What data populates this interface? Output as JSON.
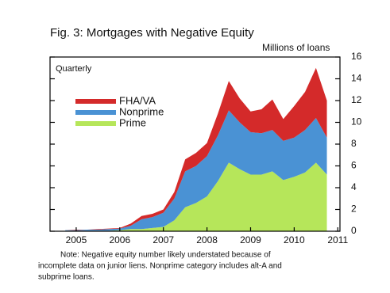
{
  "chart_data": {
    "type": "stacked_area",
    "title": "Fig. 3: Mortgages with Negative Equity",
    "y_label": "Millions of loans",
    "annotation": "Quarterly",
    "note": [
      "Note:  Negative equity number likely understated because of",
      "incomplete data on junior liens.  Nonprime category includes alt-A and",
      "subprime loans."
    ],
    "x": [
      2004.75,
      2005.0,
      2005.25,
      2005.5,
      2005.75,
      2006.0,
      2006.25,
      2006.5,
      2006.75,
      2007.0,
      2007.25,
      2007.5,
      2007.75,
      2008.0,
      2008.25,
      2008.5,
      2008.75,
      2009.0,
      2009.25,
      2009.5,
      2009.75,
      2010.0,
      2010.25,
      2010.5,
      2010.75
    ],
    "series": [
      {
        "name": "FHA/VA",
        "color": "#d42a2a",
        "values": [
          0.0,
          0.05,
          0.0,
          0.05,
          0.05,
          0.05,
          0.2,
          0.3,
          0.3,
          0.3,
          0.6,
          1.1,
          1.2,
          1.2,
          2.0,
          2.7,
          2.2,
          1.9,
          2.2,
          2.8,
          2.0,
          2.9,
          3.5,
          4.6,
          3.4
        ]
      },
      {
        "name": "Nonprime",
        "color": "#4a92d4",
        "values": [
          0.05,
          0.05,
          0.1,
          0.1,
          0.15,
          0.15,
          0.3,
          0.9,
          1.0,
          1.3,
          2.0,
          3.3,
          3.4,
          3.7,
          4.2,
          4.8,
          4.3,
          3.9,
          3.8,
          3.8,
          3.6,
          3.6,
          3.9,
          4.1,
          3.4
        ]
      },
      {
        "name": "Prime",
        "color": "#b6e65a",
        "values": [
          0.05,
          0.05,
          0.05,
          0.05,
          0.05,
          0.1,
          0.2,
          0.2,
          0.3,
          0.4,
          1.0,
          2.2,
          2.6,
          3.2,
          4.6,
          6.3,
          5.7,
          5.2,
          5.2,
          5.5,
          4.7,
          5.0,
          5.4,
          6.3,
          5.2
        ]
      }
    ],
    "xlim": [
      2004.4,
      2011.05
    ],
    "xticks": [
      2005,
      2006,
      2007,
      2008,
      2009,
      2010,
      2011
    ],
    "ylim": [
      0,
      16
    ],
    "yticks": [
      0,
      2,
      4,
      6,
      8,
      10,
      12,
      14,
      16
    ],
    "y_axis_side": "right"
  }
}
